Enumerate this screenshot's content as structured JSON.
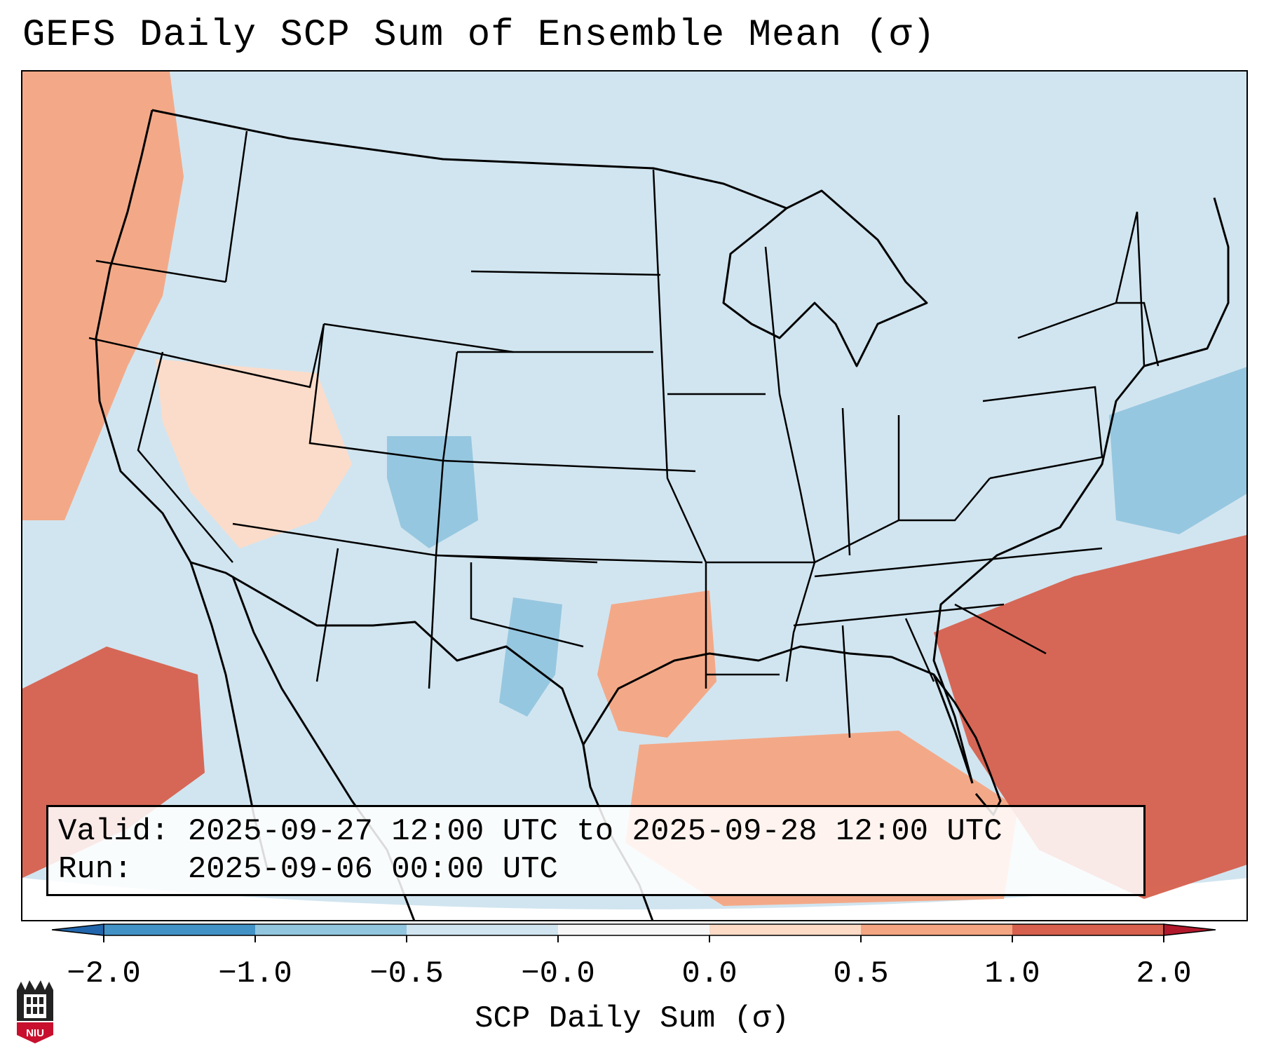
{
  "title": "GEFS Daily SCP Sum of Ensemble Mean (σ)",
  "info": {
    "valid_label": "Valid:",
    "valid_value": "2025-09-27 12:00 UTC to 2025-09-28 12:00 UTC",
    "run_label": "Run:",
    "run_value": "2025-09-06 00:00 UTC"
  },
  "colorbar": {
    "label": "SCP Daily Sum (σ)",
    "ticks": [
      "−2.0",
      "−1.0",
      "−0.5",
      "−0.0",
      "0.0",
      "0.5",
      "1.0",
      "2.0"
    ],
    "bins": [
      {
        "from": -2.0,
        "to": -1.0,
        "color": "#4292c6"
      },
      {
        "from": -1.0,
        "to": -0.5,
        "color": "#92c5de"
      },
      {
        "from": -0.5,
        "to": -0.0,
        "color": "#d1e5f0"
      },
      {
        "from": -0.0,
        "to": 0.0,
        "color": "#f7f7f7"
      },
      {
        "from": 0.0,
        "to": 0.5,
        "color": "#fddbc7"
      },
      {
        "from": 0.5,
        "to": 1.0,
        "color": "#f4a582"
      },
      {
        "from": 1.0,
        "to": 2.0,
        "color": "#d6604d"
      }
    ],
    "under_color": "#2166ac",
    "over_color": "#b2182b"
  },
  "colors": {
    "background_field": "#d1e5f0",
    "border": "#000000"
  },
  "logo": {
    "text": "NIU",
    "color": "#c8102e"
  },
  "chart_data": {
    "type": "heatmap",
    "title": "GEFS Daily SCP Sum of Ensemble Mean (σ)",
    "variable": "SCP Daily Sum (σ)",
    "region": "Contiguous United States",
    "levels": [
      -2.0,
      -1.0,
      -0.5,
      -0.0,
      0.0,
      0.5,
      1.0,
      2.0
    ],
    "anomaly_areas": [
      {
        "name": "Pacific Northwest coast",
        "value": 0.7
      },
      {
        "name": "Great Basin",
        "value": 0.3
      },
      {
        "name": "Colorado",
        "value": -0.8
      },
      {
        "name": "West Texas",
        "value": -0.7
      },
      {
        "name": "Off Baja California",
        "value": 1.2
      },
      {
        "name": "East Texas / Louisiana",
        "value": 0.6
      },
      {
        "name": "Gulf of Mexico",
        "value": 0.6
      },
      {
        "name": "Western Atlantic",
        "value": 1.2
      },
      {
        "name": "Off Mid-Atlantic coast",
        "value": -0.7
      }
    ]
  }
}
